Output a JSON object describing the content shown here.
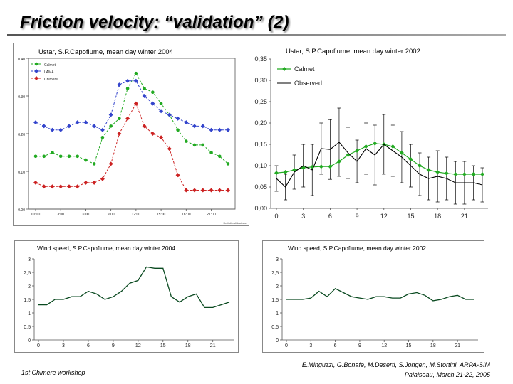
{
  "slide_title": "Friction velocity: “validation” (2)",
  "footer": {
    "left": "1st Chimere workshop",
    "authors": "E.Minguzzi, G.Bonafe, M.Deserti, S.Jongen, M.Stortini, ARPA-SIM",
    "place_date": "Palaiseau, March 21-22, 2005"
  },
  "colors": {
    "calmet": "#22aa22",
    "lama": "#3344cc",
    "chimere": "#cc2222",
    "observed": "#000000",
    "wind": "#0a4a20"
  },
  "chart_data": [
    {
      "type": "line",
      "title": "Ustar, S.P.Capofiume, mean day winter 2004",
      "ylim": [
        0,
        0.4
      ],
      "y_ticks": [
        "0.00",
        "0.10",
        "0.20",
        "0.30",
        "0.40"
      ],
      "x_ticks": [
        "00:00",
        "3:00",
        "6:00",
        "9:00",
        "12:00",
        "15:00",
        "18:00",
        "21:00"
      ],
      "corner_note": "Dati di validazione",
      "x": [
        0,
        1,
        2,
        3,
        4,
        5,
        6,
        7,
        8,
        9,
        10,
        11,
        12,
        13,
        14,
        15,
        16,
        17,
        18,
        19,
        20,
        21,
        22,
        23
      ],
      "series": [
        {
          "name": "Calmet",
          "values": [
            0.14,
            0.14,
            0.15,
            0.14,
            0.14,
            0.14,
            0.13,
            0.12,
            0.19,
            0.22,
            0.24,
            0.32,
            0.36,
            0.32,
            0.31,
            0.28,
            0.25,
            0.21,
            0.18,
            0.17,
            0.17,
            0.15,
            0.14,
            0.12
          ]
        },
        {
          "name": "LAMA",
          "values": [
            0.23,
            0.22,
            0.21,
            0.21,
            0.22,
            0.23,
            0.23,
            0.22,
            0.21,
            0.25,
            0.33,
            0.34,
            0.34,
            0.3,
            0.28,
            0.26,
            0.25,
            0.24,
            0.23,
            0.22,
            0.22,
            0.21,
            0.21,
            0.21
          ]
        },
        {
          "name": "Chimere",
          "values": [
            0.07,
            0.06,
            0.06,
            0.06,
            0.06,
            0.06,
            0.07,
            0.07,
            0.08,
            0.12,
            0.2,
            0.24,
            0.28,
            0.22,
            0.2,
            0.19,
            0.16,
            0.09,
            0.05,
            0.05,
            0.05,
            0.05,
            0.05,
            0.05
          ]
        }
      ]
    },
    {
      "type": "line",
      "title": "Ustar, S.P.Capofiume, mean day winter 2002",
      "ylim": [
        0,
        0.35
      ],
      "y_ticks": [
        "0,00",
        "0,05",
        "0,10",
        "0,15",
        "0,20",
        "0,25",
        "0,30",
        "0,35"
      ],
      "x_ticks": [
        "0",
        "3",
        "6",
        "9",
        "12",
        "15",
        "18",
        "21"
      ],
      "x": [
        0,
        1,
        2,
        3,
        4,
        5,
        6,
        7,
        8,
        9,
        10,
        11,
        12,
        13,
        14,
        15,
        16,
        17,
        18,
        19,
        20,
        21,
        22,
        23
      ],
      "series": [
        {
          "name": "Calmet",
          "values": [
            0.083,
            0.085,
            0.09,
            0.095,
            0.097,
            0.098,
            0.098,
            0.11,
            0.125,
            0.135,
            0.145,
            0.152,
            0.15,
            0.145,
            0.13,
            0.115,
            0.1,
            0.09,
            0.085,
            0.082,
            0.08,
            0.08,
            0.08,
            0.08
          ]
        },
        {
          "name": "Observed",
          "values": [
            0.07,
            0.05,
            0.085,
            0.1,
            0.09,
            0.14,
            0.138,
            0.155,
            0.13,
            0.11,
            0.14,
            0.125,
            0.15,
            0.135,
            0.12,
            0.1,
            0.08,
            0.07,
            0.075,
            0.07,
            0.06,
            0.06,
            0.06,
            0.055
          ]
        }
      ],
      "observed_error": [
        0.03,
        0.03,
        0.04,
        0.05,
        0.06,
        0.06,
        0.07,
        0.08,
        0.06,
        0.05,
        0.06,
        0.07,
        0.07,
        0.06,
        0.06,
        0.05,
        0.05,
        0.05,
        0.06,
        0.05,
        0.05,
        0.05,
        0.04,
        0.04
      ]
    },
    {
      "type": "line",
      "title": "Wind speed, S.P.Capofiume, mean day winter 2004",
      "ylim": [
        0,
        3
      ],
      "y_ticks": [
        "0",
        "0,5",
        "1",
        "1,5",
        "2",
        "2,5",
        "3"
      ],
      "x_ticks": [
        "0",
        "3",
        "6",
        "9",
        "12",
        "15",
        "18",
        "21"
      ],
      "x": [
        0,
        1,
        2,
        3,
        4,
        5,
        6,
        7,
        8,
        9,
        10,
        11,
        12,
        13,
        14,
        15,
        16,
        17,
        18,
        19,
        20,
        21,
        22,
        23
      ],
      "series": [
        {
          "name": "Wind speed",
          "values": [
            1.3,
            1.3,
            1.5,
            1.5,
            1.6,
            1.6,
            1.8,
            1.7,
            1.5,
            1.6,
            1.8,
            2.1,
            2.2,
            2.7,
            2.65,
            2.65,
            1.6,
            1.4,
            1.6,
            1.7,
            1.2,
            1.2,
            1.3,
            1.4
          ]
        }
      ]
    },
    {
      "type": "line",
      "title": "Wind speed, S.P.Capofiume, mean day winter 2002",
      "ylim": [
        0,
        3
      ],
      "y_ticks": [
        "0",
        "0,5",
        "1",
        "1,5",
        "2",
        "2,5",
        "3"
      ],
      "x_ticks": [
        "0",
        "3",
        "6",
        "9",
        "12",
        "15",
        "18",
        "21"
      ],
      "x": [
        0,
        1,
        2,
        3,
        4,
        5,
        6,
        7,
        8,
        9,
        10,
        11,
        12,
        13,
        14,
        15,
        16,
        17,
        18,
        19,
        20,
        21,
        22,
        23
      ],
      "series": [
        {
          "name": "Wind speed",
          "values": [
            1.5,
            1.5,
            1.5,
            1.55,
            1.8,
            1.6,
            1.9,
            1.75,
            1.6,
            1.55,
            1.5,
            1.6,
            1.6,
            1.55,
            1.55,
            1.7,
            1.75,
            1.65,
            1.45,
            1.5,
            1.6,
            1.65,
            1.5,
            1.5
          ]
        }
      ]
    }
  ]
}
